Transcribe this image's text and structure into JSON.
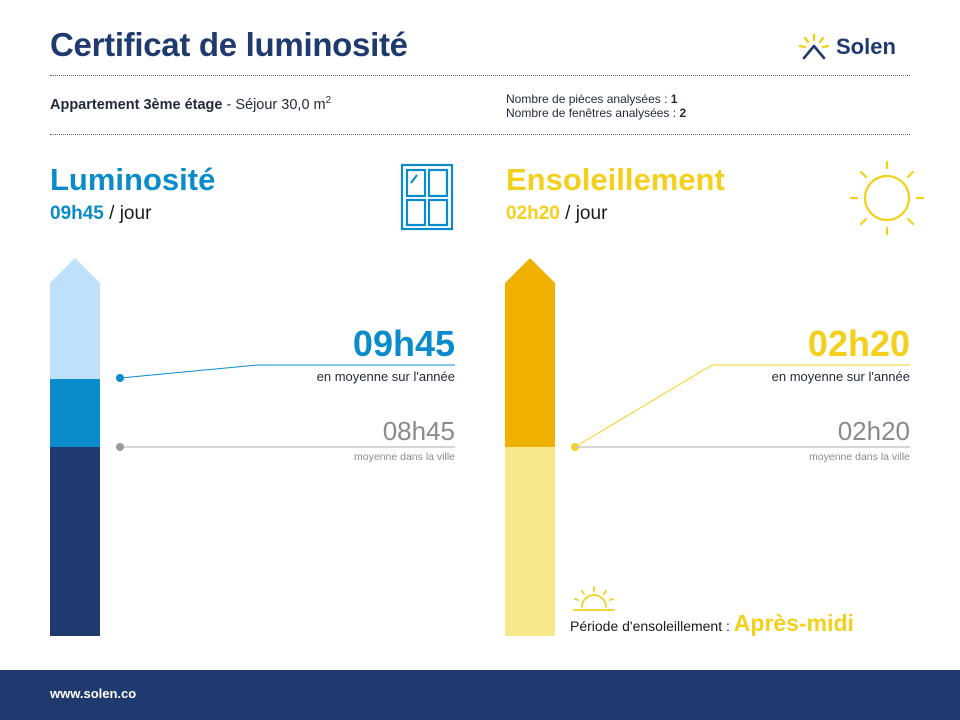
{
  "header": {
    "title": "Certificat de luminosité",
    "brand": "Solen",
    "brand_color": "#1e3a6e",
    "brand_icon": "sun-house-icon"
  },
  "info": {
    "apartment": "Appartement 3ème étage",
    "room": " - Séjour 30,0 m",
    "room_sup": "2",
    "rooms_label": "Nombre de pièces analysées : ",
    "rooms_value": "1",
    "windows_label": "Nombre de fenêtres analysées : ",
    "windows_value": "2"
  },
  "luminosite": {
    "title": "Luminosité",
    "value": "09h45",
    "per": " / jour",
    "big_value": "09h45",
    "big_caption": "en moyenne sur l'année",
    "city_value": "08h45",
    "city_caption": "moyenne dans la ville",
    "icon": "window-icon",
    "color": "#0a8ccc",
    "bar_colors": [
      "#bfe0fa",
      "#0a8ccc",
      "#1e3a6e"
    ]
  },
  "ensoleillement": {
    "title": "Ensoleillement",
    "value": "02h20",
    "per": " / jour",
    "big_value": "02h20",
    "big_caption": "en moyenne sur l'année",
    "city_value": "02h20",
    "city_caption": "moyenne dans la ville",
    "icon": "sun-icon",
    "color": "#f4cf1c",
    "bar_colors": [
      "#f0b000",
      "#f7e88a"
    ],
    "period_label": "Période d'ensoleillement : ",
    "period_value": "Après-midi",
    "period_icon": "sunset-icon"
  },
  "footer": {
    "url": "www.solen.co"
  }
}
